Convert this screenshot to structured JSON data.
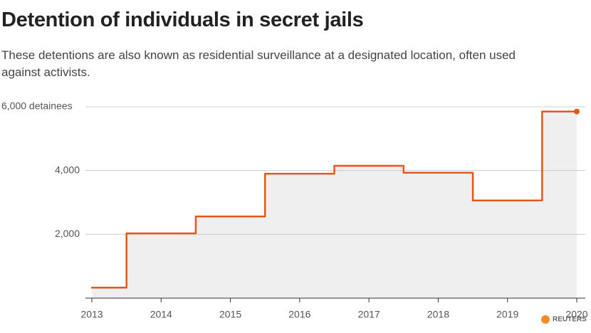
{
  "chart_data": {
    "type": "step",
    "title": "Detention of individuals in secret jails",
    "subtitle": "These detentions are also known as residential surveillance at a designated location, often used against activists.",
    "source": "REUTERS",
    "x": [
      2013,
      2014,
      2015,
      2016,
      2017,
      2018,
      2019,
      2020
    ],
    "values": [
      330,
      2030,
      2560,
      3900,
      4150,
      3930,
      3060,
      5850
    ],
    "color": "#e3571c",
    "xlim": [
      2013,
      2020
    ],
    "xticks": [
      2013,
      2014,
      2015,
      2016,
      2017,
      2018,
      2019,
      2020
    ],
    "ylim": [
      0,
      6000
    ],
    "yticks": [
      {
        "value": 2000,
        "label": "2,000"
      },
      {
        "value": 4000,
        "label": "4,000"
      },
      {
        "value": 6000,
        "label": "6,000 detainees"
      }
    ],
    "grid": true
  }
}
